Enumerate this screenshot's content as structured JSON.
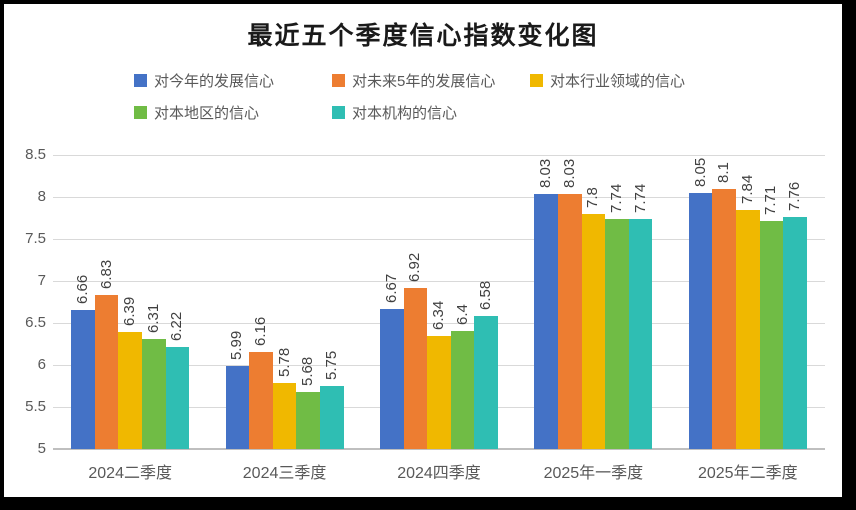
{
  "chart_data": {
    "type": "bar",
    "title": "最近五个季度信心指数变化图",
    "categories": [
      "2024二季度",
      "2024三季度",
      "2024四季度",
      "2025年一季度",
      "2025年二季度"
    ],
    "series": [
      {
        "name": "对今年的发展信心",
        "color": "#4472C6",
        "values": [
          6.66,
          5.99,
          6.67,
          8.03,
          8.05
        ]
      },
      {
        "name": "对未来5年的发展信心",
        "color": "#ED7D31",
        "values": [
          6.83,
          6.16,
          6.92,
          8.03,
          8.1
        ]
      },
      {
        "name": "对本行业领域的信心",
        "color": "#F0B800",
        "values": [
          6.39,
          5.78,
          6.34,
          7.8,
          7.84
        ]
      },
      {
        "name": "对本地区的信心",
        "color": "#70BC45",
        "values": [
          6.31,
          5.68,
          6.4,
          7.74,
          7.71
        ]
      },
      {
        "name": "对本机构的信心",
        "color": "#2FBEB3",
        "values": [
          6.22,
          5.75,
          6.58,
          7.74,
          7.76
        ]
      }
    ],
    "y_axis": {
      "min": 5,
      "max": 8.5,
      "step": 0.5,
      "ticks": [
        "8.5",
        "8",
        "7.5",
        "7",
        "6.5",
        "6",
        "5.5",
        "5"
      ]
    },
    "legend_position": "top",
    "grid": true,
    "data_labels": true,
    "data_label_rotation": "vertical-bottom-to-top"
  },
  "colors": {
    "frame": "#000000",
    "background": "#FFFFFF",
    "gridline": "#D9D9D9",
    "axis_line": "#BFBFBF",
    "tick_text": "#595959",
    "data_label_text": "#404040",
    "title_text": "#1A1A1A"
  }
}
